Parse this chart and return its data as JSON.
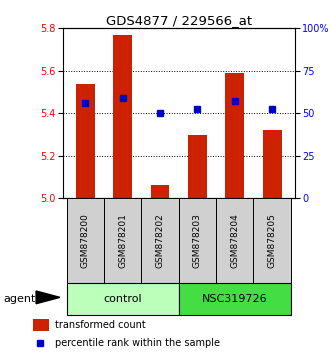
{
  "title": "GDS4877 / 229566_at",
  "samples": [
    "GSM878200",
    "GSM878201",
    "GSM878202",
    "GSM878203",
    "GSM878204",
    "GSM878205"
  ],
  "bar_values": [
    5.54,
    5.77,
    5.06,
    5.3,
    5.59,
    5.32
  ],
  "dot_values": [
    5.45,
    5.47,
    5.4,
    5.42,
    5.46,
    5.42
  ],
  "ylim_left": [
    5.0,
    5.8
  ],
  "ylim_right": [
    0,
    100
  ],
  "yticks_left": [
    5.0,
    5.2,
    5.4,
    5.6,
    5.8
  ],
  "yticks_right": [
    0,
    25,
    50,
    75,
    100
  ],
  "ytick_labels_right": [
    "0",
    "25",
    "50",
    "75",
    "100%"
  ],
  "bar_color": "#cc2200",
  "dot_color": "#0000cc",
  "groups": [
    {
      "label": "control",
      "indices": [
        0,
        1,
        2
      ],
      "color": "#bbffbb"
    },
    {
      "label": "NSC319726",
      "indices": [
        3,
        4,
        5
      ],
      "color": "#44dd44"
    }
  ],
  "agent_label": "agent",
  "legend_bar_label": "transformed count",
  "legend_dot_label": "percentile rank within the sample",
  "bar_width": 0.5,
  "figsize": [
    3.31,
    3.54
  ],
  "dpi": 100
}
